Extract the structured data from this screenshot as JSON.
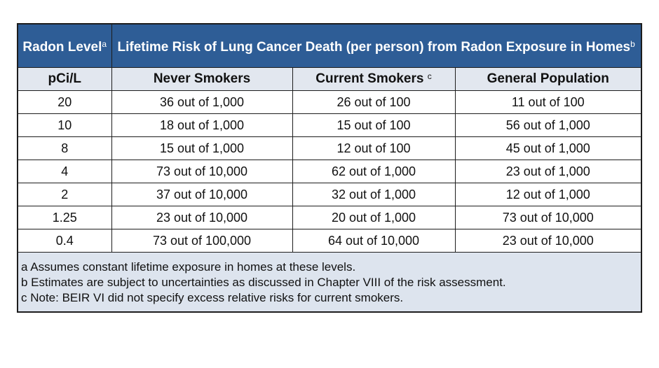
{
  "header": {
    "level_title": "Radon Level",
    "level_sup": "a",
    "risk_title": "Lifetime Risk of Lung Cancer Death (per person) from Radon Exposure in Homes",
    "risk_sup": "b"
  },
  "subheader": {
    "unit": "pCi/L",
    "never": "Never Smokers",
    "current": "Current Smokers",
    "current_sup": "c",
    "general": "General Population"
  },
  "rows": [
    {
      "level": "20",
      "never": "36 out of 1,000",
      "current": "26 out of 100",
      "general": "11 out of 100"
    },
    {
      "level": "10",
      "never": "18 out of 1,000",
      "current": "15 out of 100",
      "general": "56 out of 1,000"
    },
    {
      "level": "8",
      "never": "15 out of 1,000",
      "current": "12 out of 100",
      "general": "45 out of 1,000"
    },
    {
      "level": "4",
      "never": "73 out of 10,000",
      "current": "62 out of 1,000",
      "general": "23 out of 1,000"
    },
    {
      "level": "2",
      "never": "37 out of 10,000",
      "current": "32 out of 1,000",
      "general": "12 out of 1,000"
    },
    {
      "level": "1.25",
      "never": "23 out of 10,000",
      "current": "20 out of 1,000",
      "general": "73 out of 10,000"
    },
    {
      "level": "0.4",
      "never": "73 out of 100,000",
      "current": "64 out of 10,000",
      "general": "23 out of 10,000"
    }
  ],
  "notes": [
    "a  Assumes constant lifetime exposure in homes at these levels.",
    "b  Estimates are subject to uncertainties as discussed in Chapter VIII of the risk assessment.",
    "c  Note:  BEIR VI did not specify excess relative risks for current smokers."
  ],
  "colors": {
    "header_bg": "#2e5d96",
    "subheader_bg": "#e2e7ef",
    "notes_bg": "#dde4ee"
  }
}
